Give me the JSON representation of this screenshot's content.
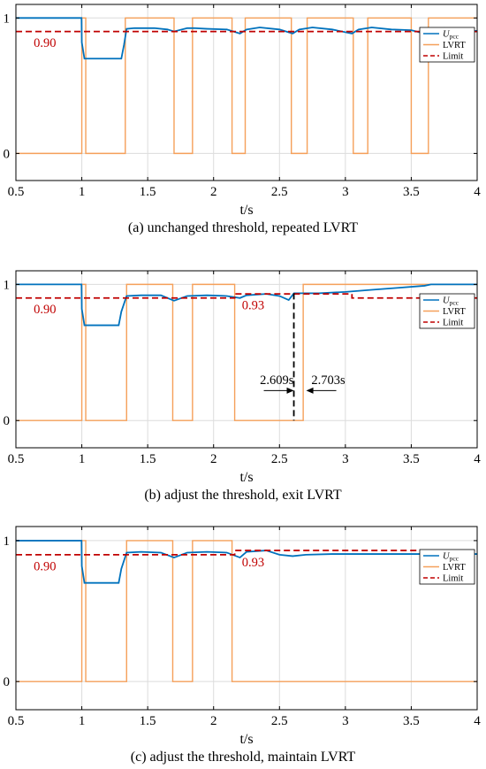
{
  "colors": {
    "upcc": "#0072BD",
    "lvrt": "#F5A05A",
    "limit": "#C00000",
    "axis": "#000000",
    "grid": "#DCDCDC"
  },
  "chart_data": [
    {
      "type": "line",
      "caption": "(a) unchanged threshold, repeated LVRT",
      "xlabel": "t/s",
      "xlim": [
        0.5,
        4
      ],
      "ylim": [
        -0.2,
        1.1
      ],
      "xticks": [
        "0.5",
        "1",
        "1.5",
        "2",
        "2.5",
        "3",
        "3.5",
        "4"
      ],
      "yticks": [
        "0",
        "1"
      ],
      "grid": true,
      "legend": {
        "position": "right",
        "entries": [
          {
            "key": "upcc",
            "main": "U",
            "sub": "pcc"
          },
          {
            "key": "lvrt",
            "main": "LVRT"
          },
          {
            "key": "limit",
            "main": "Limit"
          }
        ]
      },
      "annotations": [
        {
          "text": "0.90",
          "x": 0.72,
          "y": 0.82
        }
      ],
      "series": [
        {
          "key": "upcc",
          "x": [
            0.5,
            0.998,
            1.0,
            1.02,
            1.3,
            1.32,
            1.34,
            1.4,
            1.55,
            1.65,
            1.7,
            1.8,
            1.85,
            1.95,
            2.1,
            2.2,
            2.25,
            2.35,
            2.5,
            2.6,
            2.65,
            2.75,
            2.9,
            3.05,
            3.1,
            3.2,
            3.35,
            3.5,
            3.6,
            3.65,
            3.75,
            3.95,
            4.0
          ],
          "y": [
            1.0,
            1.0,
            0.82,
            0.7,
            0.7,
            0.8,
            0.92,
            0.925,
            0.925,
            0.915,
            0.9,
            0.925,
            0.925,
            0.92,
            0.915,
            0.885,
            0.915,
            0.93,
            0.915,
            0.885,
            0.915,
            0.93,
            0.915,
            0.885,
            0.915,
            0.93,
            0.915,
            0.91,
            0.885,
            0.915,
            0.925,
            0.905,
            0.905
          ]
        },
        {
          "key": "lvrt",
          "step": true,
          "x": [
            0.5,
            1.0,
            1.03,
            1.33,
            1.7,
            1.84,
            2.14,
            2.24,
            2.59,
            2.71,
            3.06,
            3.17,
            3.5,
            3.63,
            4.0
          ],
          "y": [
            0,
            1,
            0,
            1,
            0,
            1,
            0,
            1,
            0,
            1,
            0,
            1,
            0,
            1,
            1
          ]
        },
        {
          "key": "limit",
          "x": [
            0.5,
            4.0
          ],
          "y": [
            0.9,
            0.9
          ]
        }
      ]
    },
    {
      "type": "line",
      "caption": "(b) adjust the threshold, exit LVRT",
      "xlabel": "t/s",
      "xlim": [
        0.5,
        4
      ],
      "ylim": [
        -0.2,
        1.1
      ],
      "xticks": [
        "0.5",
        "1",
        "1.5",
        "2",
        "2.5",
        "3",
        "3.5",
        "4"
      ],
      "yticks": [
        "0",
        "1"
      ],
      "grid": true,
      "legend": {
        "position": "right",
        "entries": [
          {
            "key": "upcc",
            "main": "U",
            "sub": "pcc"
          },
          {
            "key": "lvrt",
            "main": "LVRT"
          },
          {
            "key": "limit",
            "main": "Limit"
          }
        ]
      },
      "annotations": [
        {
          "text": "0.90",
          "x": 0.72,
          "y": 0.82
        },
        {
          "text": "0.93",
          "x": 2.3,
          "y": 0.85
        },
        {
          "text": "2.609s",
          "x": 2.48,
          "y": 0.3
        },
        {
          "text": "2.703s",
          "x": 2.87,
          "y": 0.3
        }
      ],
      "markers": {
        "vline_x": 2.609,
        "arrow_left_to": 2.609,
        "arrow_right_to": 2.703,
        "arrow_y": 0.22
      },
      "series": [
        {
          "key": "upcc",
          "x": [
            0.5,
            0.998,
            1.0,
            1.02,
            1.28,
            1.3,
            1.34,
            1.45,
            1.6,
            1.7,
            1.8,
            1.95,
            2.1,
            2.2,
            2.25,
            2.4,
            2.5,
            2.57,
            2.61,
            2.7,
            2.8,
            3.0,
            3.2,
            3.4,
            3.6,
            3.65,
            4.0
          ],
          "y": [
            1.0,
            1.0,
            0.82,
            0.7,
            0.7,
            0.8,
            0.915,
            0.92,
            0.92,
            0.88,
            0.915,
            0.92,
            0.915,
            0.9,
            0.92,
            0.93,
            0.915,
            0.885,
            0.935,
            0.935,
            0.935,
            0.945,
            0.96,
            0.975,
            0.99,
            1.0,
            1.0
          ]
        },
        {
          "key": "lvrt",
          "step": true,
          "x": [
            0.5,
            1.0,
            1.03,
            1.34,
            1.69,
            1.84,
            2.16,
            2.68,
            4.0
          ],
          "y": [
            0,
            1,
            0,
            1,
            0,
            1,
            0,
            1,
            1
          ]
        },
        {
          "key": "limit",
          "step": true,
          "x": [
            0.5,
            2.16,
            3.05,
            4.0
          ],
          "y": [
            0.9,
            0.93,
            0.9,
            0.9
          ]
        }
      ]
    },
    {
      "type": "line",
      "caption": "(c) adjust the threshold, maintain LVRT",
      "xlabel": "t/s",
      "xlim": [
        0.5,
        4
      ],
      "ylim": [
        -0.2,
        1.1
      ],
      "xticks": [
        "0.5",
        "1",
        "1.5",
        "2",
        "2.5",
        "3",
        "3.5",
        "4"
      ],
      "yticks": [
        "0",
        "1"
      ],
      "grid": true,
      "legend": {
        "position": "right",
        "entries": [
          {
            "key": "upcc",
            "main": "U",
            "sub": "pcc"
          },
          {
            "key": "lvrt",
            "main": "LVRT"
          },
          {
            "key": "limit",
            "main": "Limit"
          }
        ]
      },
      "annotations": [
        {
          "text": "0.90",
          "x": 0.72,
          "y": 0.82
        },
        {
          "text": "0.93",
          "x": 2.3,
          "y": 0.85
        }
      ],
      "series": [
        {
          "key": "upcc",
          "x": [
            0.5,
            0.998,
            1.0,
            1.02,
            1.28,
            1.3,
            1.34,
            1.45,
            1.6,
            1.7,
            1.8,
            1.95,
            2.1,
            2.2,
            2.25,
            2.4,
            2.5,
            2.6,
            2.7,
            2.9,
            3.1,
            3.4,
            4.0
          ],
          "y": [
            1.0,
            1.0,
            0.82,
            0.7,
            0.7,
            0.8,
            0.915,
            0.92,
            0.915,
            0.88,
            0.915,
            0.92,
            0.915,
            0.88,
            0.92,
            0.93,
            0.9,
            0.89,
            0.9,
            0.905,
            0.905,
            0.905,
            0.905
          ]
        },
        {
          "key": "lvrt",
          "step": true,
          "x": [
            0.5,
            1.0,
            1.03,
            1.34,
            1.69,
            1.84,
            2.14,
            4.0
          ],
          "y": [
            0,
            1,
            0,
            1,
            0,
            1,
            0,
            0
          ]
        },
        {
          "key": "limit",
          "step": true,
          "x": [
            0.5,
            2.16,
            4.0
          ],
          "y": [
            0.9,
            0.93,
            0.93
          ]
        }
      ]
    }
  ]
}
